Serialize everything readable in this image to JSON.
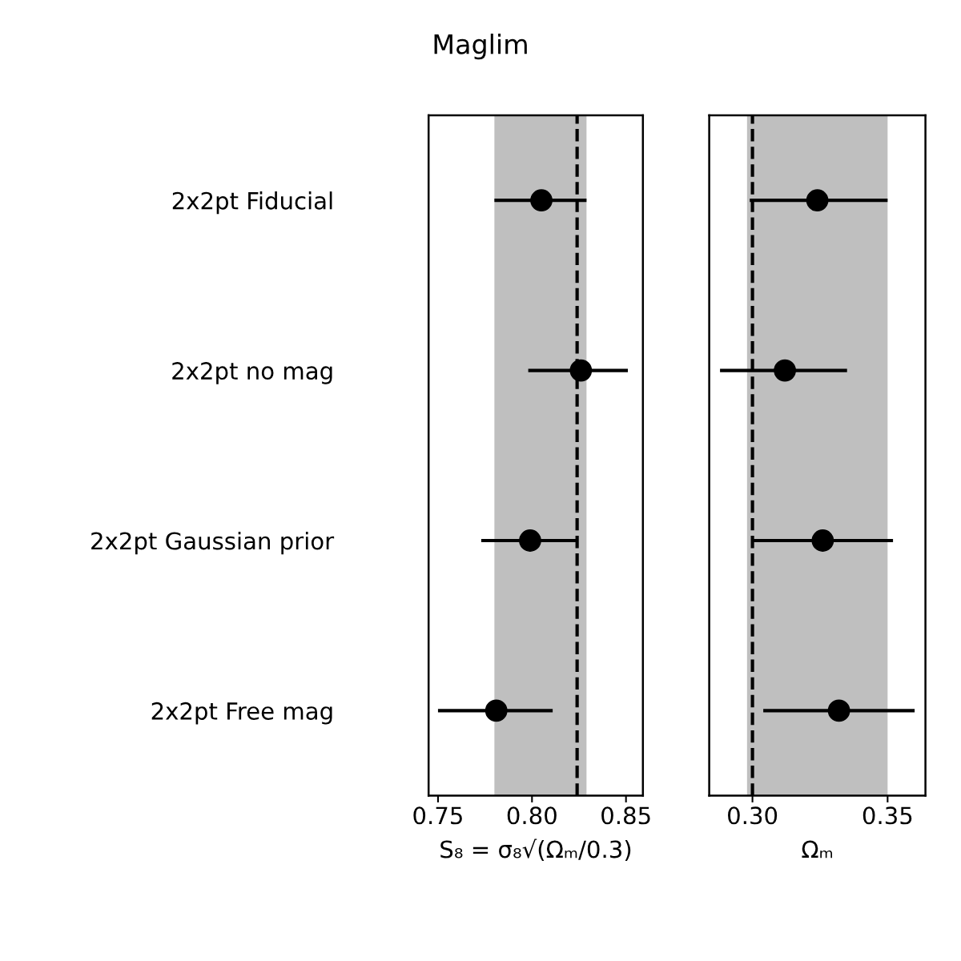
{
  "chart_data": [
    {
      "type": "scatter",
      "title": "Maglim",
      "orientation": "horizontal",
      "xlabel": "S₈ = σ₈√(Ωₘ/0.3)",
      "categories": [
        "2x2pt Fiducial",
        "2x2pt no mag",
        "2x2pt Gaussian prior",
        "2x2pt Free mag"
      ],
      "series": [
        {
          "color": "#000000",
          "values": [
            0.805,
            0.826,
            0.799,
            0.781
          ],
          "errors": [
            [
              0.78,
              0.829
            ],
            [
              0.798,
              0.851
            ],
            [
              0.773,
              0.824
            ],
            [
              0.75,
              0.811
            ]
          ]
        }
      ],
      "xlim": [
        0.745,
        0.859
      ],
      "xticks": [
        {
          "value": 0.75,
          "label": "0.75"
        },
        {
          "value": 0.8,
          "label": "0.80"
        },
        {
          "value": 0.85,
          "label": "0.85"
        }
      ],
      "ref_lines": [
        {
          "axis": "x",
          "value": 0.824,
          "color": "#000000",
          "line_style": "dashed"
        }
      ],
      "bands": [
        {
          "axis": "x",
          "from": 0.78,
          "to": 0.829,
          "color": "#bfbfbf"
        }
      ],
      "marker": "circle",
      "grid": false,
      "legend": false
    },
    {
      "type": "scatter",
      "orientation": "horizontal",
      "xlabel": "Ωₘ",
      "tick_labels": "x",
      "categories": [
        null,
        null,
        null,
        null
      ],
      "series": [
        {
          "color": "#000000",
          "values": [
            0.324,
            0.312,
            0.326,
            0.332
          ],
          "errors": [
            [
              0.299,
              0.35
            ],
            [
              0.288,
              0.335
            ],
            [
              0.3,
              0.352
            ],
            [
              0.304,
              0.36
            ]
          ]
        }
      ],
      "xlim": [
        0.284,
        0.364
      ],
      "xticks": [
        {
          "value": 0.3,
          "label": "0.30"
        },
        {
          "value": 0.35,
          "label": "0.35"
        }
      ],
      "ref_lines": [
        {
          "axis": "x",
          "value": 0.3,
          "color": "#000000",
          "line_style": "dashed"
        }
      ],
      "bands": [
        {
          "axis": "x",
          "from": 0.298,
          "to": 0.35,
          "color": "#bfbfbf"
        }
      ],
      "marker": "circle",
      "grid": false,
      "legend": false
    }
  ]
}
